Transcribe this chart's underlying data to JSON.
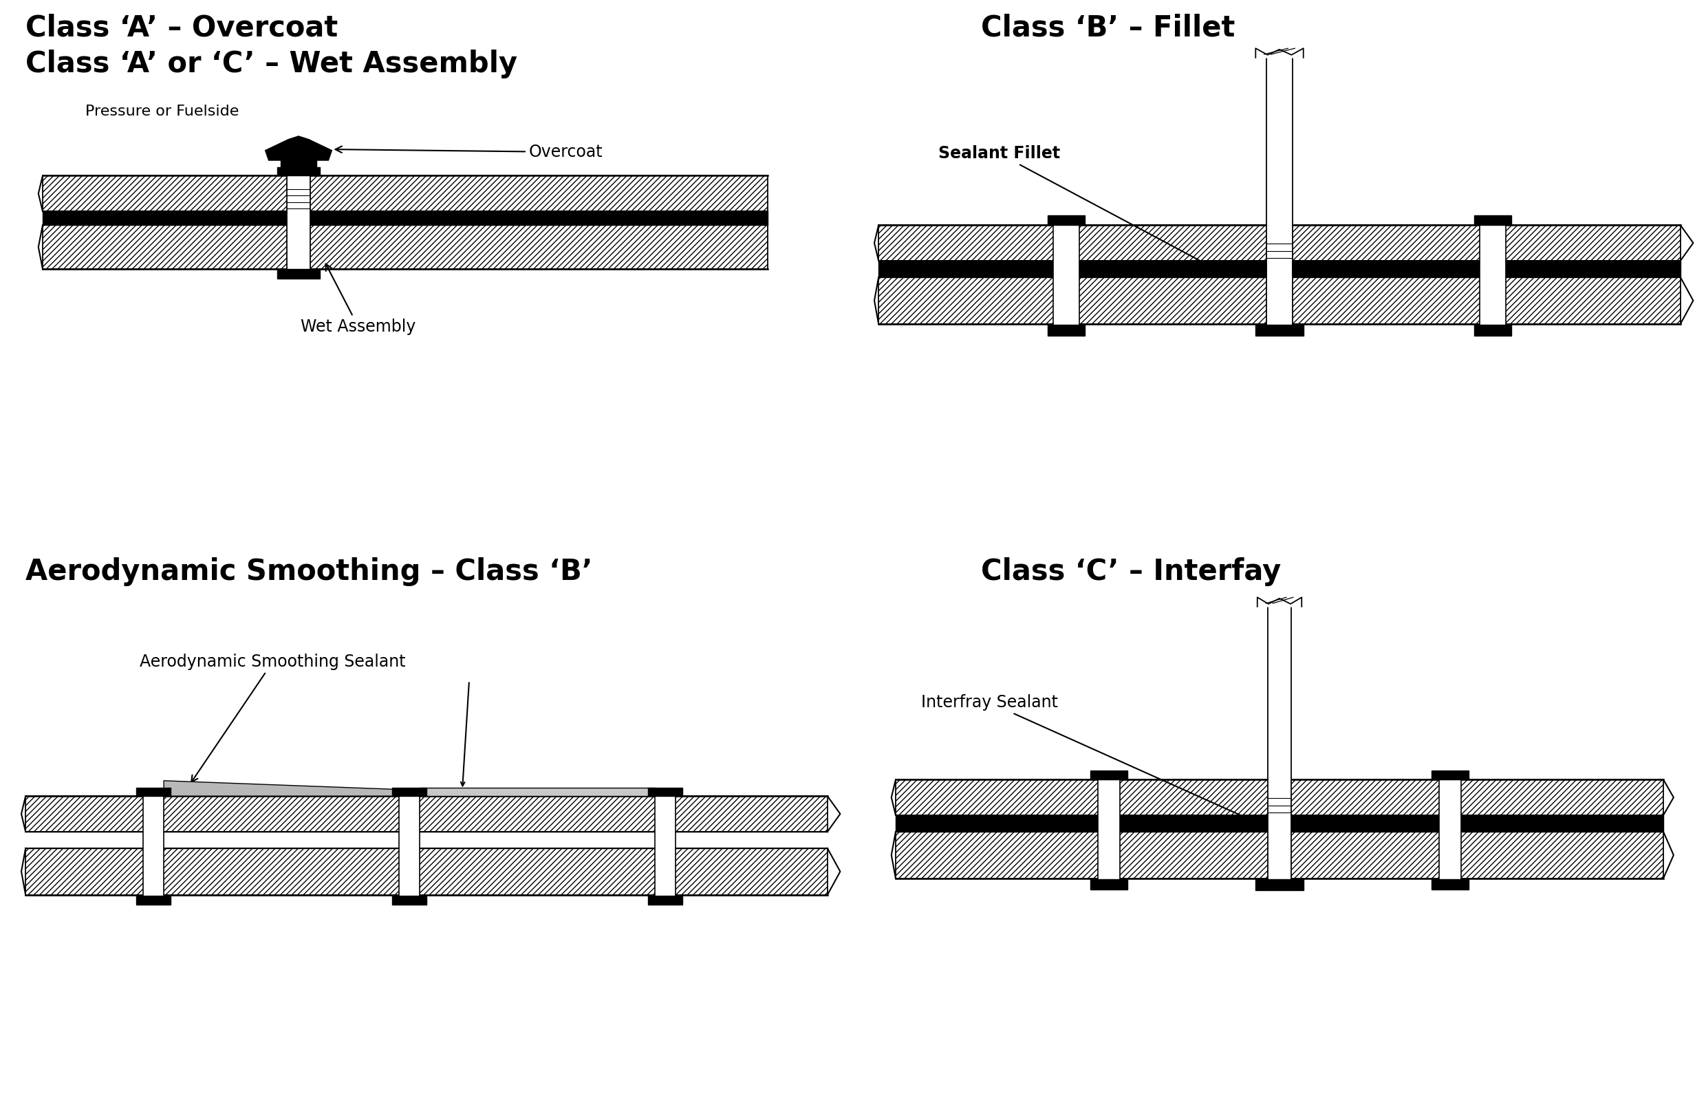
{
  "title_tl_line1": "Class ‘A’ – Overcoat",
  "title_tl_line2": "Class ‘A’ or ‘C’ – Wet Assembly",
  "title_tr": "Class ‘B’ – Fillet",
  "title_bl": "Aerodynamic Smoothing – Class ‘B’",
  "title_br": "Class ‘C’ – Interfay",
  "label_pressure": "Pressure or Fuelside",
  "label_overcoat": "Overcoat",
  "label_wet_assembly": "Wet Assembly",
  "label_sealant_fillet": "Sealant Fillet",
  "label_aero_smooth": "Aerodynamic Smoothing Sealant",
  "label_interfray": "Interfray Sealant",
  "bg_color": "#ffffff",
  "title_fontsize": 30,
  "subtitle_fontsize": 20,
  "label_fontsize": 17
}
